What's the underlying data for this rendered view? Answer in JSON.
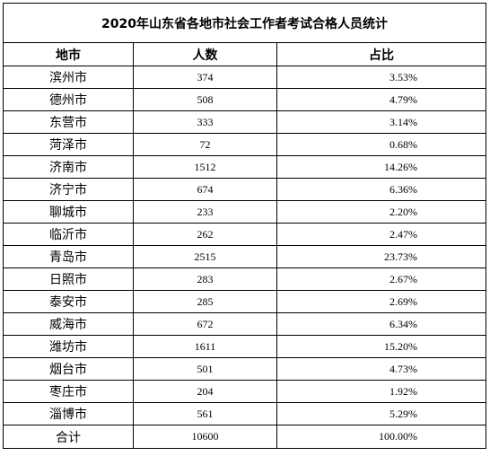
{
  "table": {
    "title": "2020年山东省各地市社会工作者考试合格人员统计",
    "headers": [
      "地市",
      "人数",
      "占比"
    ],
    "rows": [
      {
        "city": "滨州市",
        "count": "374",
        "ratio": "3.53%"
      },
      {
        "city": "德州市",
        "count": "508",
        "ratio": "4.79%"
      },
      {
        "city": "东营市",
        "count": "333",
        "ratio": "3.14%"
      },
      {
        "city": "菏泽市",
        "count": "72",
        "ratio": "0.68%"
      },
      {
        "city": "济南市",
        "count": "1512",
        "ratio": "14.26%"
      },
      {
        "city": "济宁市",
        "count": "674",
        "ratio": "6.36%"
      },
      {
        "city": "聊城市",
        "count": "233",
        "ratio": "2.20%"
      },
      {
        "city": "临沂市",
        "count": "262",
        "ratio": "2.47%"
      },
      {
        "city": "青岛市",
        "count": "2515",
        "ratio": "23.73%"
      },
      {
        "city": "日照市",
        "count": "283",
        "ratio": "2.67%"
      },
      {
        "city": "泰安市",
        "count": "285",
        "ratio": "2.69%"
      },
      {
        "city": "威海市",
        "count": "672",
        "ratio": "6.34%"
      },
      {
        "city": "潍坊市",
        "count": "1611",
        "ratio": "15.20%"
      },
      {
        "city": "烟台市",
        "count": "501",
        "ratio": "4.73%"
      },
      {
        "city": "枣庄市",
        "count": "204",
        "ratio": "1.92%"
      },
      {
        "city": "淄博市",
        "count": "561",
        "ratio": "5.29%"
      }
    ],
    "total": {
      "label": "合计",
      "count": "10600",
      "ratio": "100.00%"
    }
  }
}
